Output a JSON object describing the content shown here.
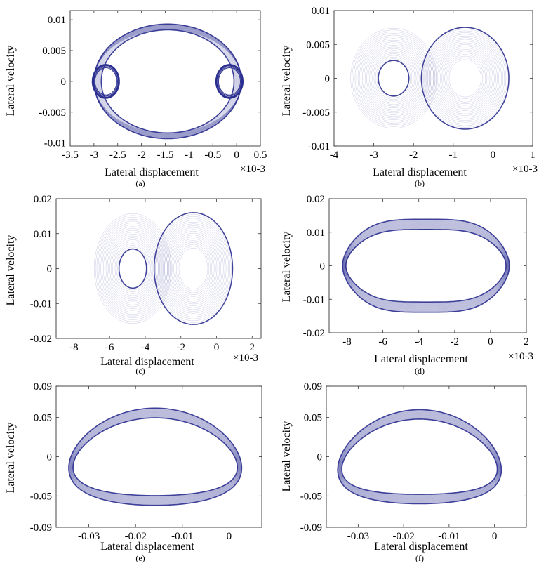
{
  "figure": {
    "line_color": "#2b2f8f",
    "panels": [
      {
        "caption": "(a)",
        "xlabel": "Lateral displacement",
        "ylabel": "Lateral velocity",
        "x_exponent_label": "×10-3",
        "chart_data": {
          "type": "line",
          "title": "",
          "xlabel": "Lateral displacement",
          "ylabel": "Lateral velocity",
          "x_scale_factor": 0.001,
          "xlim": [
            -3.5,
            0.5
          ],
          "ylim": [
            -0.0105,
            0.0115
          ],
          "xticks": [
            -3.5,
            -3,
            -2.5,
            -2,
            -1.5,
            -1,
            -0.5,
            0,
            0.5
          ],
          "xtick_labels": [
            "-3.5",
            "-3",
            "-2.5",
            "-2",
            "-1.5",
            "-1",
            "-0.5",
            "0",
            "0.5"
          ],
          "yticks": [
            -0.01,
            -0.005,
            0,
            0.005,
            0.01
          ],
          "ytick_labels": [
            "-0.01",
            "-0.005",
            "0",
            "0.005",
            "0.01"
          ],
          "grid": false,
          "attractor": {
            "center_x": -1.45,
            "half_width_x": 1.55,
            "center_y": 0,
            "half_height_y": 0.0093,
            "loop_x_left": -2.75,
            "loop_x_right": -0.15,
            "loop_radius_x": 0.28,
            "loop_radius_y": 0.0027,
            "shape": "ellipse-with-loops"
          }
        }
      },
      {
        "caption": "(b)",
        "xlabel": "Lateral displacement",
        "ylabel": "Lateral velocity",
        "x_exponent_label": "×10-3",
        "chart_data": {
          "type": "line",
          "title": "",
          "xlabel": "Lateral displacement",
          "ylabel": "Lateral velocity",
          "x_scale_factor": 0.001,
          "xlim": [
            -4,
            1
          ],
          "ylim": [
            -0.01,
            0.01
          ],
          "xticks": [
            -4,
            -3,
            -2,
            -1,
            0,
            1
          ],
          "xtick_labels": [
            "-4",
            "-3",
            "-2",
            "-1",
            "0",
            "1"
          ],
          "yticks": [
            -0.01,
            -0.005,
            0,
            0.005,
            0.01
          ],
          "ytick_labels": [
            "-0.01",
            "-0.005",
            "0",
            "0.005",
            "0.01"
          ],
          "grid": false,
          "attractor": {
            "center_x": -1.6,
            "half_width_x": 2.3,
            "center_y": 0,
            "half_height_y": 0.0083,
            "lobe_offset_x": 0.9,
            "lobe_radius_x": 1.1,
            "lobe_radius_y": 0.0075,
            "shape": "double-scroll"
          }
        }
      },
      {
        "caption": "(c)",
        "xlabel": "Lateral displacement",
        "ylabel": "Lateral velocity",
        "x_exponent_label": "×10-3",
        "chart_data": {
          "type": "line",
          "title": "",
          "xlabel": "Lateral displacement",
          "ylabel": "Lateral velocity",
          "x_scale_factor": 0.001,
          "xlim": [
            -9,
            2.5
          ],
          "ylim": [
            -0.02,
            0.02
          ],
          "xticks": [
            -8,
            -6,
            -4,
            -2,
            0,
            2
          ],
          "xtick_labels": [
            "-8",
            "-6",
            "-4",
            "-2",
            "0",
            "2"
          ],
          "yticks": [
            -0.02,
            -0.01,
            0,
            0.01,
            0.02
          ],
          "ytick_labels": [
            "-0.02",
            "-0.01",
            "0",
            "0.01",
            "0.02"
          ],
          "grid": false,
          "attractor": {
            "center_x": -3.0,
            "half_width_x": 4.4,
            "center_y": 0,
            "half_height_y": 0.0178,
            "lobe_offset_x": 1.7,
            "lobe_radius_x": 2.2,
            "lobe_radius_y": 0.016,
            "shape": "double-scroll"
          }
        }
      },
      {
        "caption": "(d)",
        "xlabel": "Lateral displacement",
        "ylabel": "Lateral velocity",
        "x_exponent_label": "×10-3",
        "chart_data": {
          "type": "line",
          "title": "",
          "xlabel": "Lateral displacement",
          "ylabel": "Lateral velocity",
          "x_scale_factor": 0.001,
          "xlim": [
            -9,
            2
          ],
          "ylim": [
            -0.02,
            0.02
          ],
          "xticks": [
            -8,
            -6,
            -4,
            -2,
            0,
            2
          ],
          "xtick_labels": [
            "-8",
            "-6",
            "-4",
            "-2",
            "0",
            "2"
          ],
          "yticks": [
            -0.02,
            -0.01,
            0,
            0.01,
            0.02
          ],
          "ytick_labels": [
            "-0.02",
            "-0.01",
            "0",
            "0.01",
            "0.02"
          ],
          "grid": false,
          "attractor": {
            "center_x": -3.6,
            "half_width_x": 4.65,
            "center_y": 0,
            "half_height_y": 0.0155,
            "waist": 0.35,
            "shape": "peanut"
          }
        }
      },
      {
        "caption": "(e)",
        "xlabel": "Lateral displacement",
        "ylabel": "Lateral velocity",
        "x_exponent_label": "",
        "chart_data": {
          "type": "line",
          "title": "",
          "xlabel": "Lateral displacement",
          "ylabel": "Lateral velocity",
          "x_scale_factor": 1,
          "xlim": [
            -0.037,
            0.007
          ],
          "ylim": [
            -0.09,
            0.09
          ],
          "xticks": [
            -0.03,
            -0.02,
            -0.01,
            0
          ],
          "xtick_labels": [
            "-0.03",
            "-0.02",
            "-0.01",
            "0"
          ],
          "yticks": [
            -0.09,
            -0.05,
            0,
            0.05,
            0.09
          ],
          "ytick_labels": [
            "-0.09",
            "-0.05",
            "0",
            "0.05",
            "0.09"
          ],
          "grid": false,
          "attractor": {
            "center_x": -0.0158,
            "half_width_x": 0.0185,
            "center_y": 0,
            "half_height_y": 0.062,
            "tilt": -0.012,
            "shape": "tilted-ring"
          }
        }
      },
      {
        "caption": "(f)",
        "xlabel": "Lateral displacement",
        "ylabel": "Lateral velocity",
        "x_exponent_label": "",
        "chart_data": {
          "type": "line",
          "title": "",
          "xlabel": "Lateral displacement",
          "ylabel": "Lateral velocity",
          "x_scale_factor": 1,
          "xlim": [
            -0.037,
            0.007
          ],
          "ylim": [
            -0.09,
            0.09
          ],
          "xticks": [
            -0.03,
            -0.02,
            -0.01,
            0
          ],
          "xtick_labels": [
            "-0.03",
            "-0.02",
            "-0.01",
            "0"
          ],
          "yticks": [
            -0.09,
            -0.05,
            0,
            0.05,
            0.09
          ],
          "ytick_labels": [
            "-0.09",
            "-0.05",
            "0",
            "0.05",
            "0.09"
          ],
          "grid": false,
          "attractor": {
            "center_x": -0.0165,
            "half_width_x": 0.018,
            "center_y": 0,
            "half_height_y": 0.06,
            "tilt": -0.014,
            "shape": "tilted-ring"
          }
        }
      }
    ]
  }
}
